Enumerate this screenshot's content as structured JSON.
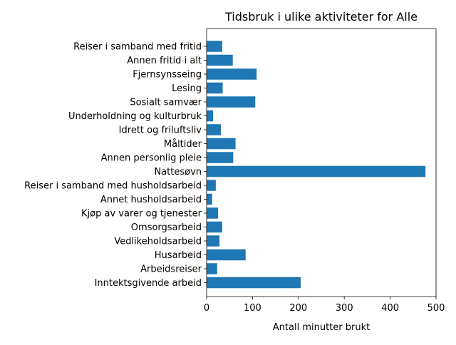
{
  "chart_data": {
    "type": "bar",
    "orientation": "horizontal",
    "title": "Tidsbruk i ulike aktiviteter for Alle",
    "xlabel": "Antall minutter brukt",
    "ylabel": "",
    "xlim": [
      0,
      500
    ],
    "xticks": [
      0,
      100,
      200,
      300,
      400,
      500
    ],
    "grid": false,
    "legend": false,
    "bar_color": "#1f77b4",
    "categories": [
      "Inntektsgivende arbeid",
      "Arbeidsreiser",
      "Husarbeid",
      "Vedlikeholdsarbeid",
      "Omsorgsarbeid",
      "Kjøp av varer og tjenester",
      "Annet husholdsarbeid",
      "Reiser i samband med husholdsarbeid",
      "Nattesøvn",
      "Annen personlig pleie",
      "Måltider",
      "Idrett og friluftsliv",
      "Underholdning og kulturbruk",
      "Sosialt samvær",
      "Lesing",
      "Fjernsynsseing",
      "Annen fritid i alt",
      "Reiser i samband med fritid"
    ],
    "values": [
      205,
      23,
      85,
      28,
      34,
      25,
      12,
      20,
      477,
      58,
      63,
      31,
      14,
      106,
      35,
      109,
      57,
      34
    ]
  }
}
